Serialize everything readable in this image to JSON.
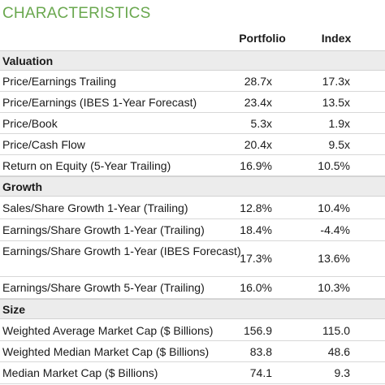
{
  "title": "CHARACTERISTICS",
  "columns": {
    "portfolio": "Portfolio",
    "index": "Index"
  },
  "sections": [
    {
      "name": "Valuation",
      "rows": [
        {
          "label": "Price/Earnings Trailing",
          "portfolio": "28.7x",
          "index": "17.3x"
        },
        {
          "label": "Price/Earnings (IBES 1-Year Forecast)",
          "portfolio": "23.4x",
          "index": "13.5x"
        },
        {
          "label": "Price/Book",
          "portfolio": "5.3x",
          "index": "1.9x"
        },
        {
          "label": "Price/Cash Flow",
          "portfolio": "20.4x",
          "index": "9.5x"
        },
        {
          "label": "Return on Equity (5-Year Trailing)",
          "portfolio": "16.9%",
          "index": "10.5%"
        }
      ]
    },
    {
      "name": "Growth",
      "rows": [
        {
          "label": "Sales/Share Growth 1-Year (Trailing)",
          "portfolio": "12.8%",
          "index": "10.4%"
        },
        {
          "label": "Earnings/Share Growth 1-Year (Trailing)",
          "portfolio": "18.4%",
          "index": "-4.4%"
        },
        {
          "label": "Earnings/Share Growth 1-Year (IBES Forecast)",
          "portfolio": "17.3%",
          "index": "13.6%"
        },
        {
          "label": "Earnings/Share Growth 5-Year (Trailing)",
          "portfolio": "16.0%",
          "index": "10.3%"
        }
      ]
    },
    {
      "name": "Size",
      "rows": [
        {
          "label": "Weighted Average Market Cap ($ Billions)",
          "portfolio": "156.9",
          "index": "115.0"
        },
        {
          "label": "Weighted Median Market Cap ($ Billions)",
          "portfolio": "83.8",
          "index": "48.6"
        },
        {
          "label": "Median Market Cap ($ Billions)",
          "portfolio": "74.1",
          "index": "9.3"
        }
      ]
    }
  ]
}
